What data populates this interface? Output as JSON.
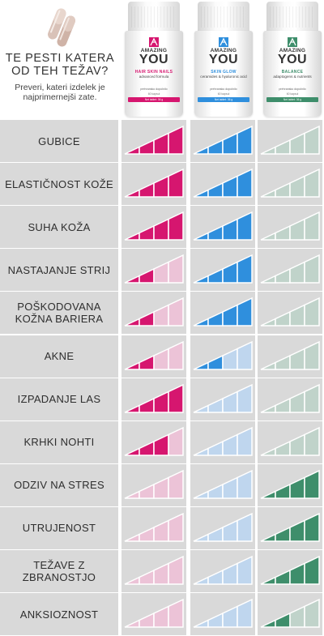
{
  "header": {
    "title": "TE PESTI KATERA OD TEH TEŽAV?",
    "subtitle": "Preveri, kateri izdelek je najprimernejši zate."
  },
  "icons": {
    "capsules": "capsules-icon"
  },
  "products": [
    {
      "brand_line1": "AMAZING",
      "brand_line2": "YOU",
      "name": "HAIR SKIN NAILS",
      "tagline": "advanced formula",
      "small": "prehransko dopolnilo",
      "count": "60 kapsul",
      "band_text": "Net tablet: 36 g",
      "color": "#d6166f",
      "light_color": "#ecc3d7"
    },
    {
      "brand_line1": "AMAZING",
      "brand_line2": "YOU",
      "name": "SKIN GLOW",
      "tagline": "ceramides & hyaluronic acid",
      "small": "prehransko dopolnilo",
      "count": "60 kapsul",
      "band_text": "Net tablet: 36 g",
      "color": "#2f8fdd",
      "light_color": "#bfd6ee"
    },
    {
      "brand_line1": "AMAZING",
      "brand_line2": "YOU",
      "name": "BALANCE",
      "tagline": "adaptogens & nutrients",
      "small": "prehransko dopolnilo",
      "count": "60 kapsul",
      "band_text": "Net tablet: 36 g",
      "color": "#3e8e6b",
      "light_color": "#c0d3ca"
    }
  ],
  "rows": [
    {
      "label": "GUBICE",
      "levels": [
        4,
        4,
        0
      ]
    },
    {
      "label": "ELASTIČNOST KOŽE",
      "levels": [
        4,
        4,
        0
      ]
    },
    {
      "label": "SUHA KOŽA",
      "levels": [
        4,
        4,
        0
      ]
    },
    {
      "label": "NASTAJANJE STRIJ",
      "levels": [
        2,
        4,
        0
      ]
    },
    {
      "label": "POŠKODOVANA KOŽNA BARIERA",
      "levels": [
        2,
        4,
        0
      ]
    },
    {
      "label": "AKNE",
      "levels": [
        2,
        2,
        0
      ]
    },
    {
      "label": "IZPADANJE LAS",
      "levels": [
        4,
        0,
        0
      ]
    },
    {
      "label": "KRHKI NOHTI",
      "levels": [
        3,
        0,
        0
      ]
    },
    {
      "label": "ODZIV NA STRES",
      "levels": [
        0,
        0,
        4
      ]
    },
    {
      "label": "UTRUJENOST",
      "levels": [
        0,
        0,
        4
      ]
    },
    {
      "label": "TEŽAVE Z ZBRANOSTJO",
      "levels": [
        0,
        0,
        4
      ]
    },
    {
      "label": "ANKSIOZNOST",
      "levels": [
        0,
        0,
        2
      ]
    }
  ]
}
